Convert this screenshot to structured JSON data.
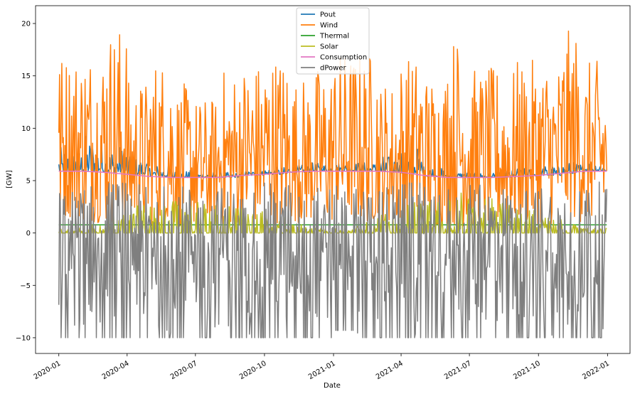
{
  "chart_data": {
    "type": "line",
    "title": "",
    "xlabel": "Date",
    "ylabel": "[GW]",
    "xlim": [
      "2019-12-01",
      "2022-01-31"
    ],
    "ylim": [
      -11.5,
      21.7
    ],
    "x_ticks": [
      "2020-01",
      "2020-04",
      "2020-07",
      "2020-10",
      "2021-01",
      "2021-04",
      "2021-07",
      "2021-10",
      "2022-01"
    ],
    "y_ticks": [
      -10,
      -5,
      0,
      5,
      10,
      15,
      20
    ],
    "y_tick_labels": [
      "−10",
      "−5",
      "0",
      "5",
      "10",
      "15",
      "20"
    ],
    "grid": false,
    "legend_position": "top-center",
    "series": [
      {
        "name": "Pout",
        "color": "#1f77b4",
        "sampling": "daily",
        "start": "2020-01-01",
        "end": "2021-12-31",
        "envelope": {
          "months": [
            "2020-01",
            "2020-02",
            "2020-03",
            "2020-04",
            "2020-05",
            "2020-06",
            "2020-07",
            "2020-08",
            "2020-09",
            "2020-10",
            "2020-11",
            "2020-12",
            "2021-01",
            "2021-02",
            "2021-03",
            "2021-04",
            "2021-05",
            "2021-06",
            "2021-07",
            "2021-08",
            "2021-09",
            "2021-10",
            "2021-11",
            "2021-12"
          ],
          "min": [
            5.9,
            5.9,
            5.8,
            5.6,
            5.4,
            5.3,
            5.3,
            5.3,
            5.5,
            5.6,
            5.8,
            5.9,
            5.9,
            5.9,
            5.8,
            5.7,
            5.4,
            5.3,
            5.3,
            5.3,
            5.4,
            5.5,
            5.7,
            5.9
          ],
          "max": [
            8.2,
            9.5,
            8.5,
            7.3,
            6.6,
            6.0,
            5.9,
            5.8,
            6.0,
            6.3,
            6.5,
            6.7,
            6.8,
            6.8,
            7.4,
            8.3,
            6.5,
            5.9,
            5.8,
            6.0,
            6.2,
            6.5,
            6.8,
            7.2
          ]
        }
      },
      {
        "name": "Wind",
        "color": "#ff7f0e",
        "sampling": "daily",
        "start": "2020-01-01",
        "end": "2021-12-31",
        "envelope": {
          "months": [
            "2020-01",
            "2020-02",
            "2020-03",
            "2020-04",
            "2020-05",
            "2020-06",
            "2020-07",
            "2020-08",
            "2020-09",
            "2020-10",
            "2020-11",
            "2020-12",
            "2021-01",
            "2021-02",
            "2021-03",
            "2021-04",
            "2021-05",
            "2021-06",
            "2021-07",
            "2021-08",
            "2021-09",
            "2021-10",
            "2021-11",
            "2021-12"
          ],
          "min": [
            1.5,
            1.0,
            0.8,
            0.8,
            0.6,
            0.6,
            0.5,
            0.7,
            0.8,
            0.8,
            1.0,
            1.0,
            1.2,
            1.0,
            1.0,
            0.8,
            0.6,
            0.6,
            0.6,
            0.6,
            0.8,
            0.8,
            1.0,
            1.2
          ],
          "max": [
            17.5,
            18.1,
            20.1,
            14.7,
            17.0,
            14.3,
            13.0,
            15.8,
            16.5,
            17.3,
            15.0,
            16.0,
            17.5,
            17.5,
            14.7,
            17.0,
            15.5,
            19.1,
            15.8,
            16.0,
            16.5,
            16.8,
            19.4,
            16.5
          ]
        }
      },
      {
        "name": "Thermal",
        "color": "#2ca02c",
        "sampling": "constant",
        "values": [
          0.78
        ]
      },
      {
        "name": "Solar",
        "color": "#bcbd22",
        "sampling": "daily",
        "start": "2020-01-01",
        "end": "2021-12-31",
        "envelope": {
          "months": [
            "2020-01",
            "2020-02",
            "2020-03",
            "2020-04",
            "2020-05",
            "2020-06",
            "2020-07",
            "2020-08",
            "2020-09",
            "2020-10",
            "2020-11",
            "2020-12",
            "2021-01",
            "2021-02",
            "2021-03",
            "2021-04",
            "2021-05",
            "2021-06",
            "2021-07",
            "2021-08",
            "2021-09",
            "2021-10",
            "2021-11",
            "2021-12"
          ],
          "min": [
            0,
            0,
            0,
            0,
            0,
            0,
            0,
            0,
            0,
            0,
            0,
            0,
            0,
            0,
            0,
            0,
            0,
            0,
            0,
            0,
            0,
            0,
            0,
            0
          ],
          "max": [
            0.5,
            0.9,
            1.7,
            2.7,
            3.0,
            3.2,
            3.1,
            2.7,
            2.2,
            1.5,
            0.8,
            0.5,
            0.5,
            1.0,
            1.8,
            2.9,
            3.3,
            4.0,
            3.3,
            2.9,
            2.2,
            1.6,
            0.9,
            0.5
          ]
        }
      },
      {
        "name": "Consumption",
        "color": "#e377c2",
        "sampling": "monthly",
        "x": [
          "2020-01-01",
          "2020-02-01",
          "2020-03-01",
          "2020-04-01",
          "2020-05-01",
          "2020-06-01",
          "2020-07-01",
          "2020-08-01",
          "2020-09-01",
          "2020-10-01",
          "2020-11-01",
          "2020-12-01",
          "2021-01-01",
          "2021-02-01",
          "2021-03-01",
          "2021-04-01",
          "2021-05-01",
          "2021-06-01",
          "2021-07-01",
          "2021-08-01",
          "2021-09-01",
          "2021-10-01",
          "2021-11-01",
          "2021-12-01",
          "2021-12-31"
        ],
        "values": [
          5.9,
          5.9,
          5.8,
          5.6,
          5.4,
          5.3,
          5.3,
          5.3,
          5.5,
          5.6,
          5.8,
          5.9,
          5.9,
          5.9,
          5.9,
          5.8,
          5.5,
          5.3,
          5.3,
          5.3,
          5.4,
          5.5,
          5.7,
          5.9,
          5.9
        ]
      },
      {
        "name": "dPower",
        "color": "#7f7f7f",
        "sampling": "daily",
        "start": "2020-01-01",
        "end": "2021-12-31",
        "envelope": {
          "months": [
            "2020-01",
            "2020-02",
            "2020-03",
            "2020-04",
            "2020-05",
            "2020-06",
            "2020-07",
            "2020-08",
            "2020-09",
            "2020-10",
            "2020-11",
            "2020-12",
            "2021-01",
            "2021-02",
            "2021-03",
            "2021-04",
            "2021-05",
            "2021-06",
            "2021-07",
            "2021-08",
            "2021-09",
            "2021-10",
            "2021-11",
            "2021-12"
          ],
          "min": [
            -10,
            -10,
            -10,
            -10,
            -10,
            -10,
            -10,
            -10,
            -10,
            -10,
            -10,
            -10,
            -9.3,
            -10,
            -10,
            -10,
            -10,
            -10,
            -10,
            -10,
            -10,
            -10,
            -10,
            -10
          ],
          "max": [
            4.2,
            4.8,
            5.0,
            4.6,
            4.8,
            4.6,
            4.4,
            4.5,
            4.6,
            4.8,
            4.8,
            4.6,
            4.5,
            4.6,
            4.7,
            4.8,
            4.6,
            4.5,
            4.6,
            4.8,
            4.5,
            4.8,
            4.9,
            4.9
          ]
        }
      }
    ]
  }
}
